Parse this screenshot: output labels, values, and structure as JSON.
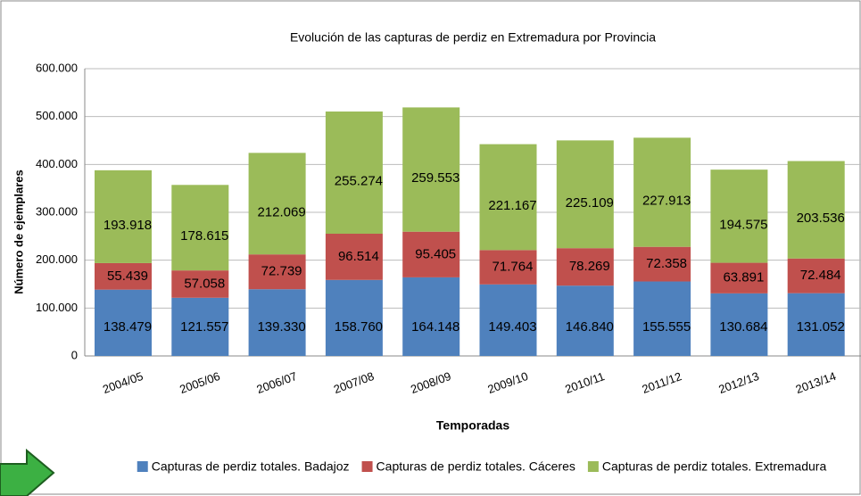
{
  "chart_data": {
    "type": "stacked_bar",
    "title": "Evolución de las capturas de perdiz en Extremadura por Provincia",
    "xlabel": "Temporadas",
    "ylabel": "Número de ejemplares",
    "categories": [
      "2004/05",
      "2005/06",
      "2006/07",
      "2007/08",
      "2008/09",
      "2009/10",
      "2010/11",
      "2011/12",
      "2012/13",
      "2013/14"
    ],
    "series": [
      {
        "name": "Capturas de perdiz totales. Badajoz",
        "color": "#4f81bd",
        "values": [
          138479,
          121557,
          139330,
          158760,
          164148,
          149403,
          146840,
          155555,
          130684,
          131052
        ],
        "value_labels": [
          "138.479",
          "121.557",
          "139.330",
          "158.760",
          "164.148",
          "149.403",
          "146.840",
          "155.555",
          "130.684",
          "131.052"
        ]
      },
      {
        "name": "Capturas de perdiz totales. Cáceres",
        "color": "#c0504d",
        "values": [
          55439,
          57058,
          72739,
          96514,
          95405,
          71764,
          78269,
          72358,
          63891,
          72484
        ],
        "value_labels": [
          "55.439",
          "57.058",
          "72.739",
          "96.514",
          "95.405",
          "71.764",
          "78.269",
          "72.358",
          "63.891",
          "72.484"
        ]
      },
      {
        "name": "Capturas de perdiz totales. Extremadura",
        "color": "#9bbb59",
        "values": [
          193918,
          178615,
          212069,
          255274,
          259553,
          221167,
          225109,
          227913,
          194575,
          203536
        ],
        "value_labels": [
          "193.918",
          "178.615",
          "212.069",
          "255.274",
          "259.553",
          "221.167",
          "225.109",
          "227.913",
          "194.575",
          "203.536"
        ]
      }
    ],
    "ylim": [
      0,
      600000
    ],
    "yticks": [
      0,
      {
        "value": 100000,
        "label": "100.000"
      },
      {
        "value": 200000,
        "label": "200.000"
      },
      {
        "value": 300000,
        "label": "300.000"
      },
      {
        "value": 400000,
        "label": "400.000"
      },
      {
        "value": 500000,
        "label": "500.000"
      },
      {
        "value": 600000,
        "label": "600.000"
      }
    ],
    "grid": true,
    "legend": "bottom"
  }
}
